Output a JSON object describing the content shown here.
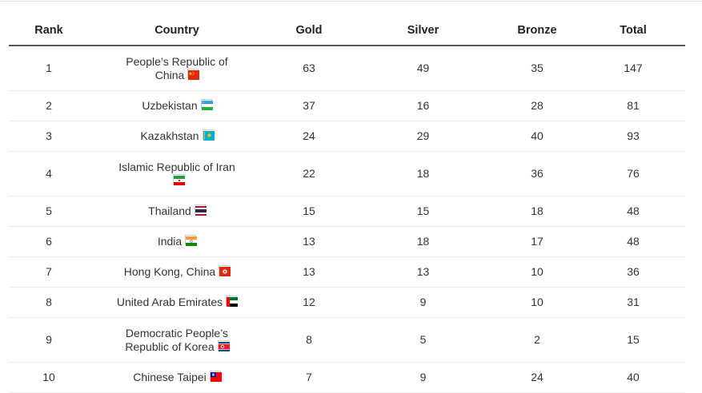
{
  "table": {
    "headers": [
      "Rank",
      "Country",
      "Gold",
      "Silver",
      "Bronze",
      "Total"
    ],
    "rows": [
      {
        "rank": "1",
        "country_line1": "People’s Republic of",
        "country_line2": "China",
        "flag": "china-flag-icon",
        "gold": "63",
        "silver": "49",
        "bronze": "35",
        "total": "147"
      },
      {
        "rank": "2",
        "country_line1": "Uzbekistan",
        "country_line2": "",
        "flag": "uzbekistan-flag-icon",
        "gold": "37",
        "silver": "16",
        "bronze": "28",
        "total": "81"
      },
      {
        "rank": "3",
        "country_line1": "Kazakhstan",
        "country_line2": "",
        "flag": "kazakhstan-flag-icon",
        "gold": "24",
        "silver": "29",
        "bronze": "40",
        "total": "93"
      },
      {
        "rank": "4",
        "country_line1": "Islamic Republic of Iran",
        "country_line2": "",
        "flag": "iran-flag-icon",
        "gold": "22",
        "silver": "18",
        "bronze": "36",
        "total": "76"
      },
      {
        "rank": "5",
        "country_line1": "Thailand",
        "country_line2": "",
        "flag": "thailand-flag-icon",
        "gold": "15",
        "silver": "15",
        "bronze": "18",
        "total": "48"
      },
      {
        "rank": "6",
        "country_line1": "India",
        "country_line2": "",
        "flag": "india-flag-icon",
        "gold": "13",
        "silver": "18",
        "bronze": "17",
        "total": "48"
      },
      {
        "rank": "7",
        "country_line1": "Hong Kong, China",
        "country_line2": "",
        "flag": "hong-kong-flag-icon",
        "gold": "13",
        "silver": "13",
        "bronze": "10",
        "total": "36"
      },
      {
        "rank": "8",
        "country_line1": "United Arab Emirates",
        "country_line2": "",
        "flag": "uae-flag-icon",
        "gold": "12",
        "silver": "9",
        "bronze": "10",
        "total": "31"
      },
      {
        "rank": "9",
        "country_line1": "Democratic People’s",
        "country_line2": "Republic of Korea",
        "flag": "north-korea-flag-icon",
        "gold": "8",
        "silver": "5",
        "bronze": "2",
        "total": "15"
      },
      {
        "rank": "10",
        "country_line1": "Chinese Taipei",
        "country_line2": "",
        "flag": "chinese-taipei-flag-icon",
        "gold": "7",
        "silver": "9",
        "bronze": "24",
        "total": "40"
      }
    ]
  },
  "colors": {
    "header_rule": "#555555",
    "row_divider": "#ececec",
    "text": "#333333"
  }
}
